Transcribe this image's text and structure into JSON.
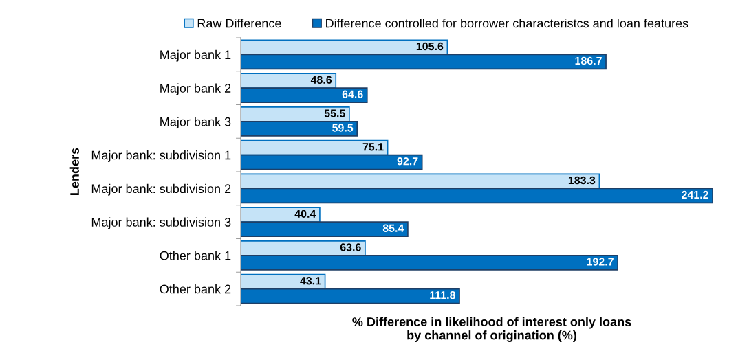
{
  "chart_data": {
    "type": "bar",
    "orientation": "horizontal",
    "data_labels": true,
    "legend": "top",
    "grid": false,
    "xlabel": "% Difference in likelihood of interest only loans\nby channel of origination (%)",
    "ylabel": "Lenders",
    "categories": [
      "Major bank 1",
      "Major bank 2",
      "Major bank 3",
      "Major bank: subdivision 1",
      "Major bank: subdivision 2",
      "Major bank: subdivision 3",
      "Other bank 1",
      "Other bank 2"
    ],
    "tick_labels": "y",
    "series": [
      {
        "name": "Raw Difference",
        "color": "#c5e3f7",
        "values": [
          105.6,
          48.6,
          55.5,
          75.1,
          183.3,
          40.4,
          63.6,
          43.1
        ]
      },
      {
        "name": "Difference controlled for borrower characteristcs and loan features",
        "color": "#0070c0",
        "values": [
          186.7,
          64.6,
          59.5,
          92.7,
          241.2,
          85.4,
          192.7,
          111.8
        ]
      }
    ]
  }
}
